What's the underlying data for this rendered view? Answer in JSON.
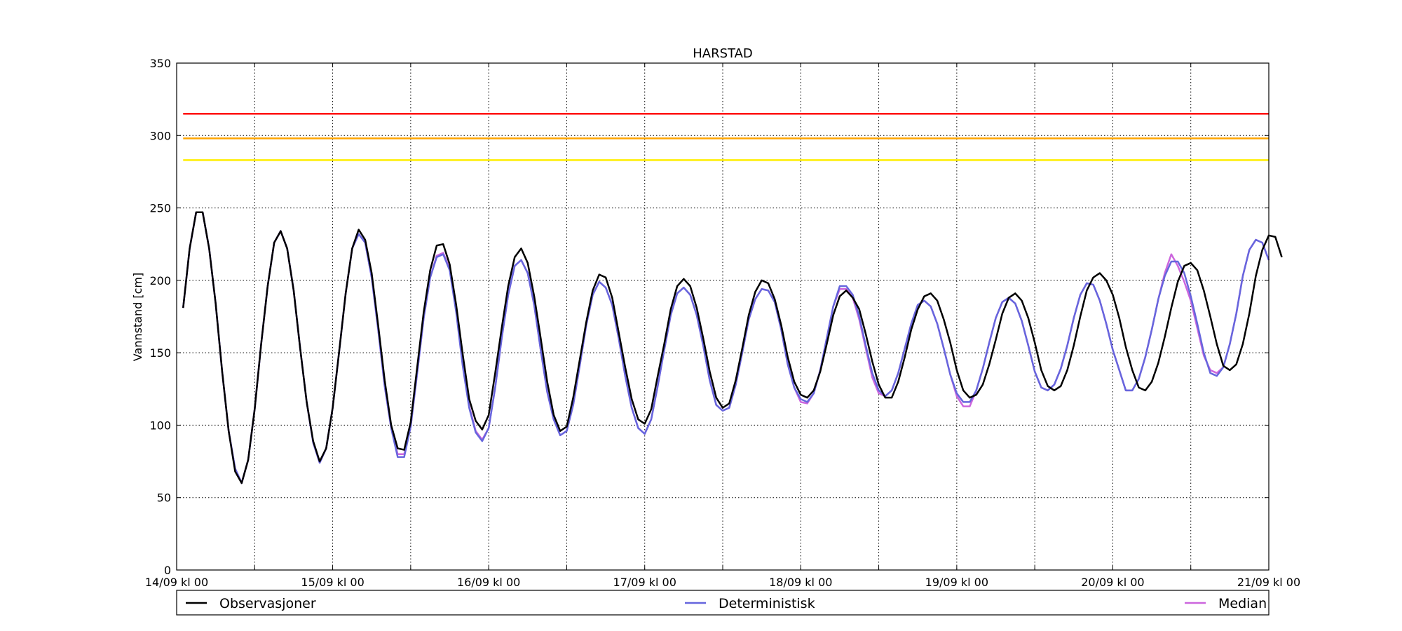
{
  "chart_data": {
    "type": "line",
    "title": "HARSTAD",
    "xlabel": "",
    "ylabel": "Vannstand [cm]",
    "ylim": [
      0,
      350
    ],
    "yticks": [
      0,
      50,
      100,
      150,
      200,
      250,
      300,
      350
    ],
    "xlim_hours": [
      0,
      168
    ],
    "xtick_labels": [
      "14/09 kl 00",
      "15/09 kl 00",
      "16/09 kl 00",
      "17/09 kl 00",
      "18/09 kl 00",
      "19/09 kl 00",
      "20/09 kl 00",
      "21/09 kl 00"
    ],
    "grid": true,
    "legend_position": "bottom",
    "thresholds": [
      {
        "value": 315,
        "color": "#ff0000"
      },
      {
        "value": 298,
        "color": "#ffa500"
      },
      {
        "value": 283,
        "color": "#ffee00"
      }
    ],
    "series": [
      {
        "name": "Observasjoner",
        "color": "#000000",
        "x_start_hour": 1,
        "x_step_hours": 1,
        "values": [
          181,
          222,
          247,
          247,
          222,
          184,
          137,
          96,
          68,
          60,
          76,
          111,
          156,
          196,
          226,
          234,
          222,
          193,
          153,
          116,
          89,
          75,
          84,
          112,
          151,
          191,
          222,
          235,
          228,
          205,
          169,
          131,
          100,
          84,
          83,
          102,
          140,
          178,
          207,
          224,
          225,
          211,
          183,
          149,
          118,
          103,
          97,
          107,
          136,
          167,
          196,
          216,
          222,
          212,
          189,
          160,
          130,
          107,
          96,
          99,
          119,
          145,
          171,
          193,
          204,
          202,
          188,
          164,
          140,
          118,
          104,
          101,
          111,
          134,
          156,
          180,
          196,
          201,
          196,
          181,
          160,
          137,
          119,
          112,
          115,
          131,
          153,
          176,
          192,
          200,
          198,
          187,
          169,
          147,
          130,
          121,
          119,
          124,
          137,
          156,
          176,
          189,
          193,
          188,
          180,
          163,
          144,
          128,
          119,
          119,
          130,
          147,
          166,
          180,
          189,
          191,
          186,
          173,
          157,
          138,
          124,
          119,
          121,
          128,
          142,
          159,
          177,
          188,
          191,
          186,
          174,
          157,
          138,
          127,
          124,
          127,
          138,
          155,
          175,
          193,
          202,
          205,
          200,
          190,
          174,
          154,
          138,
          126,
          124,
          130,
          143,
          161,
          181,
          199,
          210,
          212,
          207,
          193,
          175,
          156,
          141,
          138,
          142,
          156,
          177,
          203,
          221,
          231,
          230,
          216
        ]
      },
      {
        "name": "Deterministisk",
        "color": "#6666dd",
        "x_start_hour": 1,
        "x_step_hours": 1,
        "values": [
          181,
          222,
          247,
          247,
          222,
          184,
          137,
          96,
          70,
          60,
          76,
          111,
          156,
          196,
          226,
          234,
          222,
          193,
          153,
          116,
          88,
          74,
          84,
          112,
          151,
          191,
          222,
          232,
          226,
          202,
          166,
          127,
          98,
          78,
          78,
          99,
          136,
          174,
          202,
          216,
          218,
          207,
          178,
          141,
          112,
          95,
          89,
          98,
          126,
          160,
          190,
          210,
          214,
          205,
          183,
          152,
          123,
          104,
          93,
          96,
          114,
          141,
          169,
          190,
          199,
          195,
          183,
          160,
          134,
          112,
          98,
          94,
          104,
          127,
          152,
          176,
          191,
          195,
          190,
          176,
          155,
          131,
          114,
          110,
          112,
          128,
          150,
          173,
          187,
          194,
          193,
          185,
          166,
          142,
          126,
          118,
          116,
          122,
          138,
          160,
          182,
          196,
          196,
          190,
          175,
          155,
          136,
          124,
          120,
          124,
          136,
          153,
          170,
          183,
          186,
          182,
          170,
          153,
          135,
          122,
          116,
          116,
          124,
          139,
          157,
          174,
          185,
          188,
          184,
          172,
          155,
          137,
          126,
          124,
          128,
          139,
          155,
          174,
          190,
          198,
          197,
          186,
          170,
          152,
          138,
          124,
          124,
          132,
          147,
          166,
          187,
          203,
          213,
          213,
          205,
          189,
          170,
          150,
          136,
          134,
          140,
          156,
          177,
          203,
          221,
          228,
          226,
          214
        ]
      },
      {
        "name": "Median",
        "color": "#cc66dd",
        "x_start_hour": 1,
        "x_step_hours": 1,
        "values": [
          181,
          222,
          247,
          247,
          222,
          184,
          137,
          96,
          70,
          60,
          76,
          111,
          156,
          196,
          226,
          234,
          222,
          193,
          153,
          116,
          88,
          74,
          84,
          112,
          151,
          191,
          222,
          232,
          226,
          202,
          166,
          127,
          98,
          80,
          80,
          99,
          136,
          174,
          202,
          217,
          219,
          208,
          179,
          142,
          113,
          96,
          90,
          98,
          126,
          160,
          190,
          210,
          214,
          205,
          183,
          152,
          123,
          104,
          93,
          96,
          114,
          141,
          169,
          190,
          199,
          195,
          183,
          160,
          134,
          112,
          98,
          94,
          104,
          127,
          152,
          176,
          191,
          195,
          190,
          176,
          155,
          131,
          114,
          110,
          112,
          128,
          150,
          173,
          187,
          194,
          193,
          185,
          166,
          142,
          126,
          116,
          115,
          122,
          138,
          160,
          182,
          194,
          194,
          188,
          173,
          153,
          133,
          122,
          120,
          124,
          136,
          153,
          170,
          183,
          186,
          182,
          170,
          153,
          135,
          120,
          113,
          113,
          124,
          139,
          157,
          174,
          185,
          188,
          184,
          172,
          155,
          137,
          126,
          124,
          128,
          139,
          155,
          174,
          190,
          198,
          197,
          186,
          170,
          152,
          138,
          124,
          124,
          132,
          147,
          166,
          187,
          205,
          218,
          210,
          199,
          186,
          167,
          148,
          138,
          136,
          140,
          156,
          177,
          203,
          221,
          228,
          226,
          214
        ]
      }
    ]
  }
}
